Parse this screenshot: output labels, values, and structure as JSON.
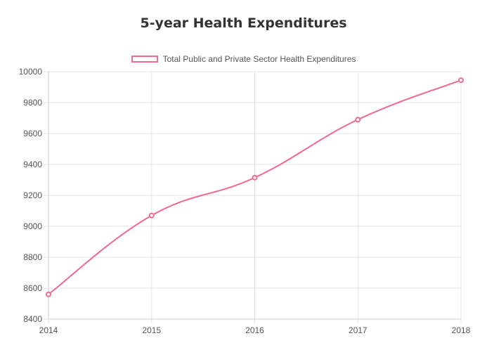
{
  "chart_data": {
    "type": "line",
    "title": "5-year Health Expenditures",
    "x": [
      "2014",
      "2015",
      "2016",
      "2017",
      "2018"
    ],
    "series": [
      {
        "name": "Total Public and Private Sector Health Expenditures",
        "values": [
          8560,
          9070,
          9315,
          9690,
          9945
        ]
      }
    ],
    "ylim": [
      8400,
      10000
    ],
    "yticks": [
      "10000",
      "9800",
      "9600",
      "9400",
      "9200",
      "9000",
      "8800",
      "8600",
      "8400"
    ],
    "grid": true,
    "legend_position": "top",
    "line_color": "#f0698f"
  }
}
